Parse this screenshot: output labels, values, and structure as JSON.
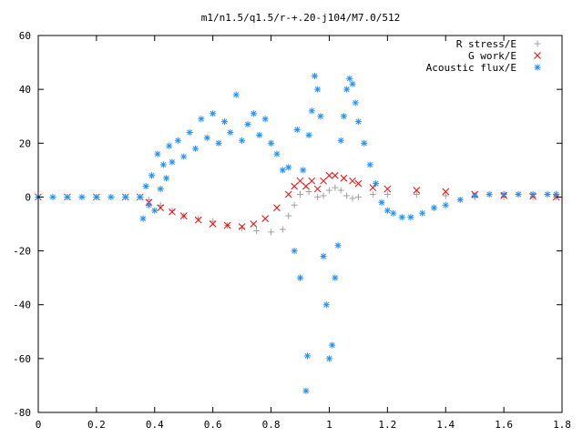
{
  "chart_data": {
    "type": "scatter",
    "title": "m1/n1.5/q1.5/r-+.20-j104/M7.0/512",
    "xlabel": "",
    "ylabel": "",
    "xlim": [
      0,
      1.8
    ],
    "ylim": [
      -80,
      60
    ],
    "x_ticks": [
      "0",
      "0.2",
      "0.4",
      "0.6",
      "0.8",
      "1",
      "1.2",
      "1.4",
      "1.6",
      "1.8"
    ],
    "y_ticks": [
      "60",
      "40",
      "20",
      "0",
      "-20",
      "-40",
      "-60",
      "-80"
    ],
    "grid": false,
    "legend_position": "top-right",
    "series": [
      {
        "name": "R stress/E",
        "marker": "+",
        "color": "#a0a0a0",
        "points": [
          [
            0.0,
            0
          ],
          [
            0.1,
            0
          ],
          [
            0.2,
            0
          ],
          [
            0.3,
            0
          ],
          [
            0.35,
            0
          ],
          [
            0.38,
            -1
          ],
          [
            0.42,
            -3
          ],
          [
            0.46,
            -5
          ],
          [
            0.5,
            -7
          ],
          [
            0.55,
            -8
          ],
          [
            0.6,
            -9
          ],
          [
            0.65,
            -10.5
          ],
          [
            0.7,
            -11.5
          ],
          [
            0.75,
            -12.5
          ],
          [
            0.8,
            -13
          ],
          [
            0.84,
            -12
          ],
          [
            0.86,
            -7
          ],
          [
            0.88,
            -3
          ],
          [
            0.9,
            1
          ],
          [
            0.93,
            2
          ],
          [
            0.96,
            0
          ],
          [
            0.98,
            0.5
          ],
          [
            1.0,
            2.5
          ],
          [
            1.02,
            3.5
          ],
          [
            1.04,
            2.5
          ],
          [
            1.06,
            0.5
          ],
          [
            1.08,
            -0.5
          ],
          [
            1.1,
            0
          ],
          [
            1.15,
            1
          ],
          [
            1.2,
            1
          ],
          [
            1.3,
            1
          ],
          [
            1.4,
            0.5
          ],
          [
            1.5,
            0
          ],
          [
            1.6,
            0
          ],
          [
            1.7,
            0
          ],
          [
            1.78,
            0
          ]
        ]
      },
      {
        "name": "G work/E",
        "marker": "x",
        "color": "#ff0000",
        "points": [
          [
            0.0,
            0
          ],
          [
            0.1,
            0
          ],
          [
            0.2,
            0
          ],
          [
            0.3,
            0
          ],
          [
            0.35,
            0
          ],
          [
            0.38,
            -2
          ],
          [
            0.42,
            -4
          ],
          [
            0.46,
            -5.5
          ],
          [
            0.5,
            -7
          ],
          [
            0.55,
            -8.5
          ],
          [
            0.6,
            -10
          ],
          [
            0.65,
            -10.5
          ],
          [
            0.7,
            -11
          ],
          [
            0.74,
            -10
          ],
          [
            0.78,
            -8
          ],
          [
            0.82,
            -4
          ],
          [
            0.86,
            1
          ],
          [
            0.88,
            4
          ],
          [
            0.9,
            6
          ],
          [
            0.92,
            4
          ],
          [
            0.94,
            6
          ],
          [
            0.96,
            3
          ],
          [
            0.98,
            6
          ],
          [
            1.0,
            8
          ],
          [
            1.02,
            8
          ],
          [
            1.05,
            7
          ],
          [
            1.08,
            6
          ],
          [
            1.1,
            5
          ],
          [
            1.15,
            3.5
          ],
          [
            1.2,
            3
          ],
          [
            1.3,
            2.5
          ],
          [
            1.4,
            2
          ],
          [
            1.5,
            1
          ],
          [
            1.6,
            0.5
          ],
          [
            1.7,
            0.3
          ],
          [
            1.78,
            0
          ]
        ]
      },
      {
        "name": "Acoustic flux/E",
        "marker": "*",
        "color": "#1e90ff",
        "points": [
          [
            0.0,
            0
          ],
          [
            0.05,
            0
          ],
          [
            0.1,
            0
          ],
          [
            0.15,
            0
          ],
          [
            0.2,
            0
          ],
          [
            0.25,
            0
          ],
          [
            0.3,
            0
          ],
          [
            0.35,
            0
          ],
          [
            0.36,
            -8
          ],
          [
            0.37,
            4
          ],
          [
            0.38,
            -3
          ],
          [
            0.39,
            8
          ],
          [
            0.4,
            -5
          ],
          [
            0.41,
            16
          ],
          [
            0.42,
            3
          ],
          [
            0.43,
            12
          ],
          [
            0.44,
            7
          ],
          [
            0.45,
            19
          ],
          [
            0.46,
            13
          ],
          [
            0.48,
            21
          ],
          [
            0.5,
            15
          ],
          [
            0.52,
            24
          ],
          [
            0.54,
            18
          ],
          [
            0.56,
            29
          ],
          [
            0.58,
            22
          ],
          [
            0.6,
            31
          ],
          [
            0.62,
            20
          ],
          [
            0.64,
            28
          ],
          [
            0.66,
            24
          ],
          [
            0.68,
            38
          ],
          [
            0.7,
            21
          ],
          [
            0.72,
            27
          ],
          [
            0.74,
            31
          ],
          [
            0.76,
            23
          ],
          [
            0.78,
            29
          ],
          [
            0.8,
            20
          ],
          [
            0.82,
            16
          ],
          [
            0.84,
            10
          ],
          [
            0.86,
            11
          ],
          [
            0.88,
            -20
          ],
          [
            0.89,
            25
          ],
          [
            0.9,
            -30
          ],
          [
            0.91,
            10
          ],
          [
            0.92,
            -72
          ],
          [
            0.925,
            -59
          ],
          [
            0.93,
            23
          ],
          [
            0.94,
            32
          ],
          [
            0.95,
            45
          ],
          [
            0.96,
            40
          ],
          [
            0.97,
            30
          ],
          [
            0.98,
            -22
          ],
          [
            0.99,
            -40
          ],
          [
            1.0,
            -60
          ],
          [
            1.01,
            -55
          ],
          [
            1.02,
            -30
          ],
          [
            1.03,
            -18
          ],
          [
            1.04,
            21
          ],
          [
            1.05,
            30
          ],
          [
            1.06,
            40
          ],
          [
            1.07,
            44
          ],
          [
            1.08,
            42
          ],
          [
            1.09,
            35
          ],
          [
            1.1,
            28
          ],
          [
            1.12,
            20
          ],
          [
            1.14,
            12
          ],
          [
            1.16,
            5
          ],
          [
            1.18,
            -2
          ],
          [
            1.2,
            -5
          ],
          [
            1.22,
            -6
          ],
          [
            1.25,
            -7.5
          ],
          [
            1.28,
            -7.5
          ],
          [
            1.32,
            -6
          ],
          [
            1.36,
            -4
          ],
          [
            1.4,
            -3
          ],
          [
            1.45,
            -1
          ],
          [
            1.5,
            0.5
          ],
          [
            1.55,
            1
          ],
          [
            1.6,
            1
          ],
          [
            1.65,
            1
          ],
          [
            1.7,
            1
          ],
          [
            1.75,
            1
          ],
          [
            1.78,
            1
          ]
        ]
      }
    ]
  }
}
